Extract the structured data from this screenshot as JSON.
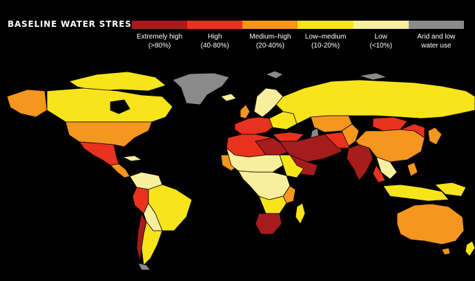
{
  "title": "BASELINE WATER STRESS",
  "legend": {
    "items": [
      {
        "line1": "Extremely high",
        "line2": "(>80%)",
        "color": "#a61c1c"
      },
      {
        "line1": "High",
        "line2": "(40-80%)",
        "color": "#e8321f"
      },
      {
        "line1": "Medium–high",
        "line2": "(20-40%)",
        "color": "#f5961f"
      },
      {
        "line1": "Low–medium",
        "line2": "(10-20%)",
        "color": "#f7e41b"
      },
      {
        "line1": "Low",
        "line2": "(<10%)",
        "color": "#f8ef9c"
      },
      {
        "line1": "Arid and low",
        "line2": "water use",
        "color": "#8a8a8a"
      }
    ]
  }
}
